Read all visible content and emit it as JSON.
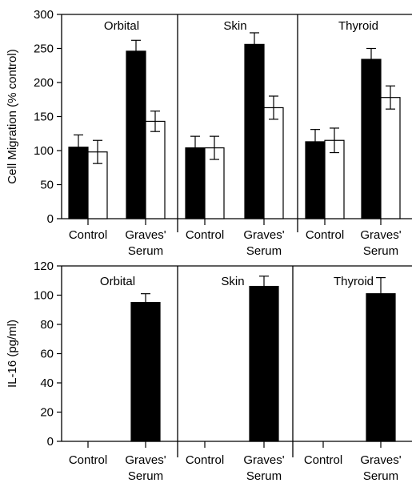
{
  "chart_data": [
    {
      "type": "bar",
      "ylabel": "Cell Migration (% control)",
      "ylim": [
        0,
        300
      ],
      "yticks": [
        0,
        50,
        100,
        150,
        200,
        250,
        300
      ],
      "panels": [
        "Orbital",
        "Skin",
        "Thyroid"
      ],
      "category_labels": [
        [
          "Control"
        ],
        [
          "Graves'",
          "Serum"
        ]
      ],
      "series": [
        {
          "fill": "#000000",
          "values": [
            [
              105,
              246
            ],
            [
              104,
              256
            ],
            [
              113,
              234
            ]
          ],
          "errors": [
            [
              18,
              16
            ],
            [
              17,
              17
            ],
            [
              18,
              16
            ]
          ]
        },
        {
          "fill": "#ffffff",
          "values": [
            [
              98,
              143
            ],
            [
              104,
              163
            ],
            [
              115,
              178
            ]
          ],
          "errors": [
            [
              17,
              15
            ],
            [
              17,
              17
            ],
            [
              18,
              17
            ]
          ]
        }
      ]
    },
    {
      "type": "bar",
      "ylabel": "IL-16 (pg/ml)",
      "ylim": [
        0,
        120
      ],
      "yticks": [
        0,
        20,
        40,
        60,
        80,
        100,
        120
      ],
      "panels": [
        "Orbital",
        "Skin",
        "Thyroid"
      ],
      "category_labels": [
        [
          "Control"
        ],
        [
          "Graves'",
          "Serum"
        ]
      ],
      "series": [
        {
          "fill": "#000000",
          "values": [
            [
              0,
              95
            ],
            [
              0,
              106
            ],
            [
              0,
              101
            ]
          ],
          "errors": [
            [
              0,
              6
            ],
            [
              0,
              7
            ],
            [
              0,
              11
            ]
          ]
        }
      ]
    }
  ]
}
